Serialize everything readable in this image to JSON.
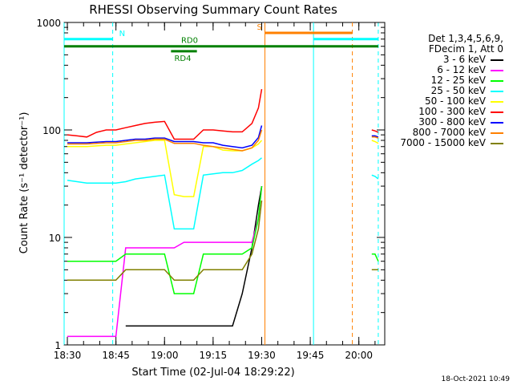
{
  "chart_data": {
    "type": "line",
    "title": "RHESSI Observing Summary Count Rates",
    "xlabel": "Start Time (02-Jul-04 18:29:22)",
    "ylabel": "Count Rate (s⁻¹ detector⁻¹)",
    "yscale": "log",
    "ylim": [
      1,
      1000
    ],
    "xlim": [
      "18:29",
      "20:08"
    ],
    "x_ticks": [
      "18:30",
      "18:45",
      "19:00",
      "19:15",
      "19:30",
      "19:45",
      "20:00"
    ],
    "y_ticks": [
      "1",
      "10",
      "100",
      "1000"
    ],
    "legend_header": [
      "Det 1,3,4,5,6,9,",
      "FDecim 1, Att 0"
    ],
    "timestamp": "18-Oct-2021 10:49",
    "x": [
      "18:30",
      "18:33",
      "18:36",
      "18:39",
      "18:42",
      "18:45",
      "18:48",
      "18:51",
      "18:54",
      "18:57",
      "19:00",
      "19:03",
      "19:06",
      "19:09",
      "19:12",
      "19:15",
      "19:18",
      "19:21",
      "19:24",
      "19:27",
      "19:29",
      "19:30",
      "19:56",
      "19:58",
      "20:00",
      "20:02",
      "20:04",
      "20:05",
      "20:06"
    ],
    "series": [
      {
        "name": "3 - 6 keV",
        "color": "#000000",
        "values": [
          null,
          null,
          null,
          null,
          null,
          null,
          1.5,
          1.5,
          1.5,
          1.5,
          1.5,
          1.5,
          1.5,
          1.5,
          1.5,
          1.5,
          1.5,
          1.5,
          3,
          8,
          20,
          30,
          null,
          null,
          null,
          null,
          null,
          null,
          null
        ]
      },
      {
        "name": "6 - 12 keV",
        "color": "#ff00ff",
        "values": [
          1.2,
          1.2,
          1.2,
          1.2,
          1.2,
          1.2,
          8,
          8,
          8,
          8,
          8,
          8,
          9,
          9,
          9,
          9,
          9,
          9,
          9,
          9,
          15,
          30,
          null,
          null,
          null,
          null,
          null,
          null,
          null
        ]
      },
      {
        "name": "12 - 25 keV",
        "color": "#00ff00",
        "values": [
          6,
          6,
          6,
          6,
          6,
          6,
          7,
          7,
          7,
          7,
          7,
          3,
          3,
          3,
          7,
          7,
          7,
          7,
          7,
          8,
          15,
          30,
          null,
          null,
          null,
          null,
          7,
          7,
          6
        ]
      },
      {
        "name": "25 - 50 keV",
        "color": "#00ffff",
        "values": [
          34,
          33,
          32,
          32,
          32,
          32,
          33,
          35,
          36,
          37,
          38,
          12,
          12,
          12,
          38,
          39,
          40,
          40,
          42,
          48,
          52,
          55,
          null,
          null,
          null,
          null,
          38,
          37,
          35
        ]
      },
      {
        "name": "50 - 100 keV",
        "color": "#ffff00",
        "values": [
          70,
          70,
          70,
          71,
          72,
          72,
          74,
          76,
          78,
          80,
          80,
          25,
          24,
          24,
          70,
          70,
          65,
          64,
          64,
          68,
          74,
          80,
          null,
          null,
          null,
          null,
          80,
          78,
          75
        ]
      },
      {
        "name": "100 - 300 keV",
        "color": "#ff0000",
        "values": [
          90,
          88,
          86,
          95,
          100,
          100,
          105,
          110,
          115,
          118,
          120,
          82,
          82,
          82,
          100,
          100,
          98,
          96,
          96,
          115,
          160,
          240,
          null,
          null,
          null,
          null,
          100,
          98,
          95
        ]
      },
      {
        "name": "300 - 800 keV",
        "color": "#0000ff",
        "values": [
          76,
          76,
          76,
          77,
          78,
          78,
          80,
          82,
          82,
          84,
          84,
          78,
          78,
          78,
          76,
          76,
          72,
          70,
          68,
          72,
          85,
          110,
          null,
          null,
          null,
          null,
          88,
          88,
          86
        ]
      },
      {
        "name": "800 - 7000 keV",
        "color": "#ff8000",
        "values": [
          74,
          74,
          74,
          75,
          76,
          76,
          78,
          80,
          80,
          82,
          82,
          75,
          75,
          75,
          72,
          70,
          68,
          66,
          64,
          68,
          80,
          100,
          null,
          null,
          null,
          null,
          86,
          86,
          84
        ]
      },
      {
        "name": "7000 - 15000 keV",
        "color": "#808000",
        "values": [
          4,
          4,
          4,
          4,
          4,
          4,
          5,
          5,
          5,
          5,
          5,
          4,
          4,
          4,
          5,
          5,
          5,
          5,
          5,
          7,
          12,
          22,
          null,
          null,
          null,
          null,
          5,
          5,
          5
        ]
      }
    ],
    "flags": [
      {
        "label": "N",
        "color": "#00ffff",
        "segments": [
          [
            "18:29",
            "18:44"
          ],
          [
            "19:46",
            "20:06"
          ]
        ],
        "level": 700
      },
      {
        "label": "S",
        "color": "#ff8000",
        "segments": [
          [
            "19:31",
            "19:58"
          ]
        ],
        "level": 800
      },
      {
        "label": "RD0",
        "color": "#008000",
        "segments": [
          [
            "18:29",
            "20:06"
          ]
        ],
        "level": 600
      },
      {
        "label": "RD4",
        "color": "#008000",
        "segments": [
          [
            "19:02",
            "19:10"
          ]
        ],
        "level": 540
      }
    ],
    "vlines": [
      {
        "x": "18:29",
        "color": "#00ffff",
        "dashed": false
      },
      {
        "x": "18:44",
        "color": "#00ffff",
        "dashed": true
      },
      {
        "x": "19:31",
        "color": "#ff8000",
        "dashed": false
      },
      {
        "x": "19:46",
        "color": "#00ffff",
        "dashed": false
      },
      {
        "x": "19:58",
        "color": "#ff8000",
        "dashed": true
      },
      {
        "x": "20:06",
        "color": "#00ffff",
        "dashed": true
      }
    ]
  }
}
